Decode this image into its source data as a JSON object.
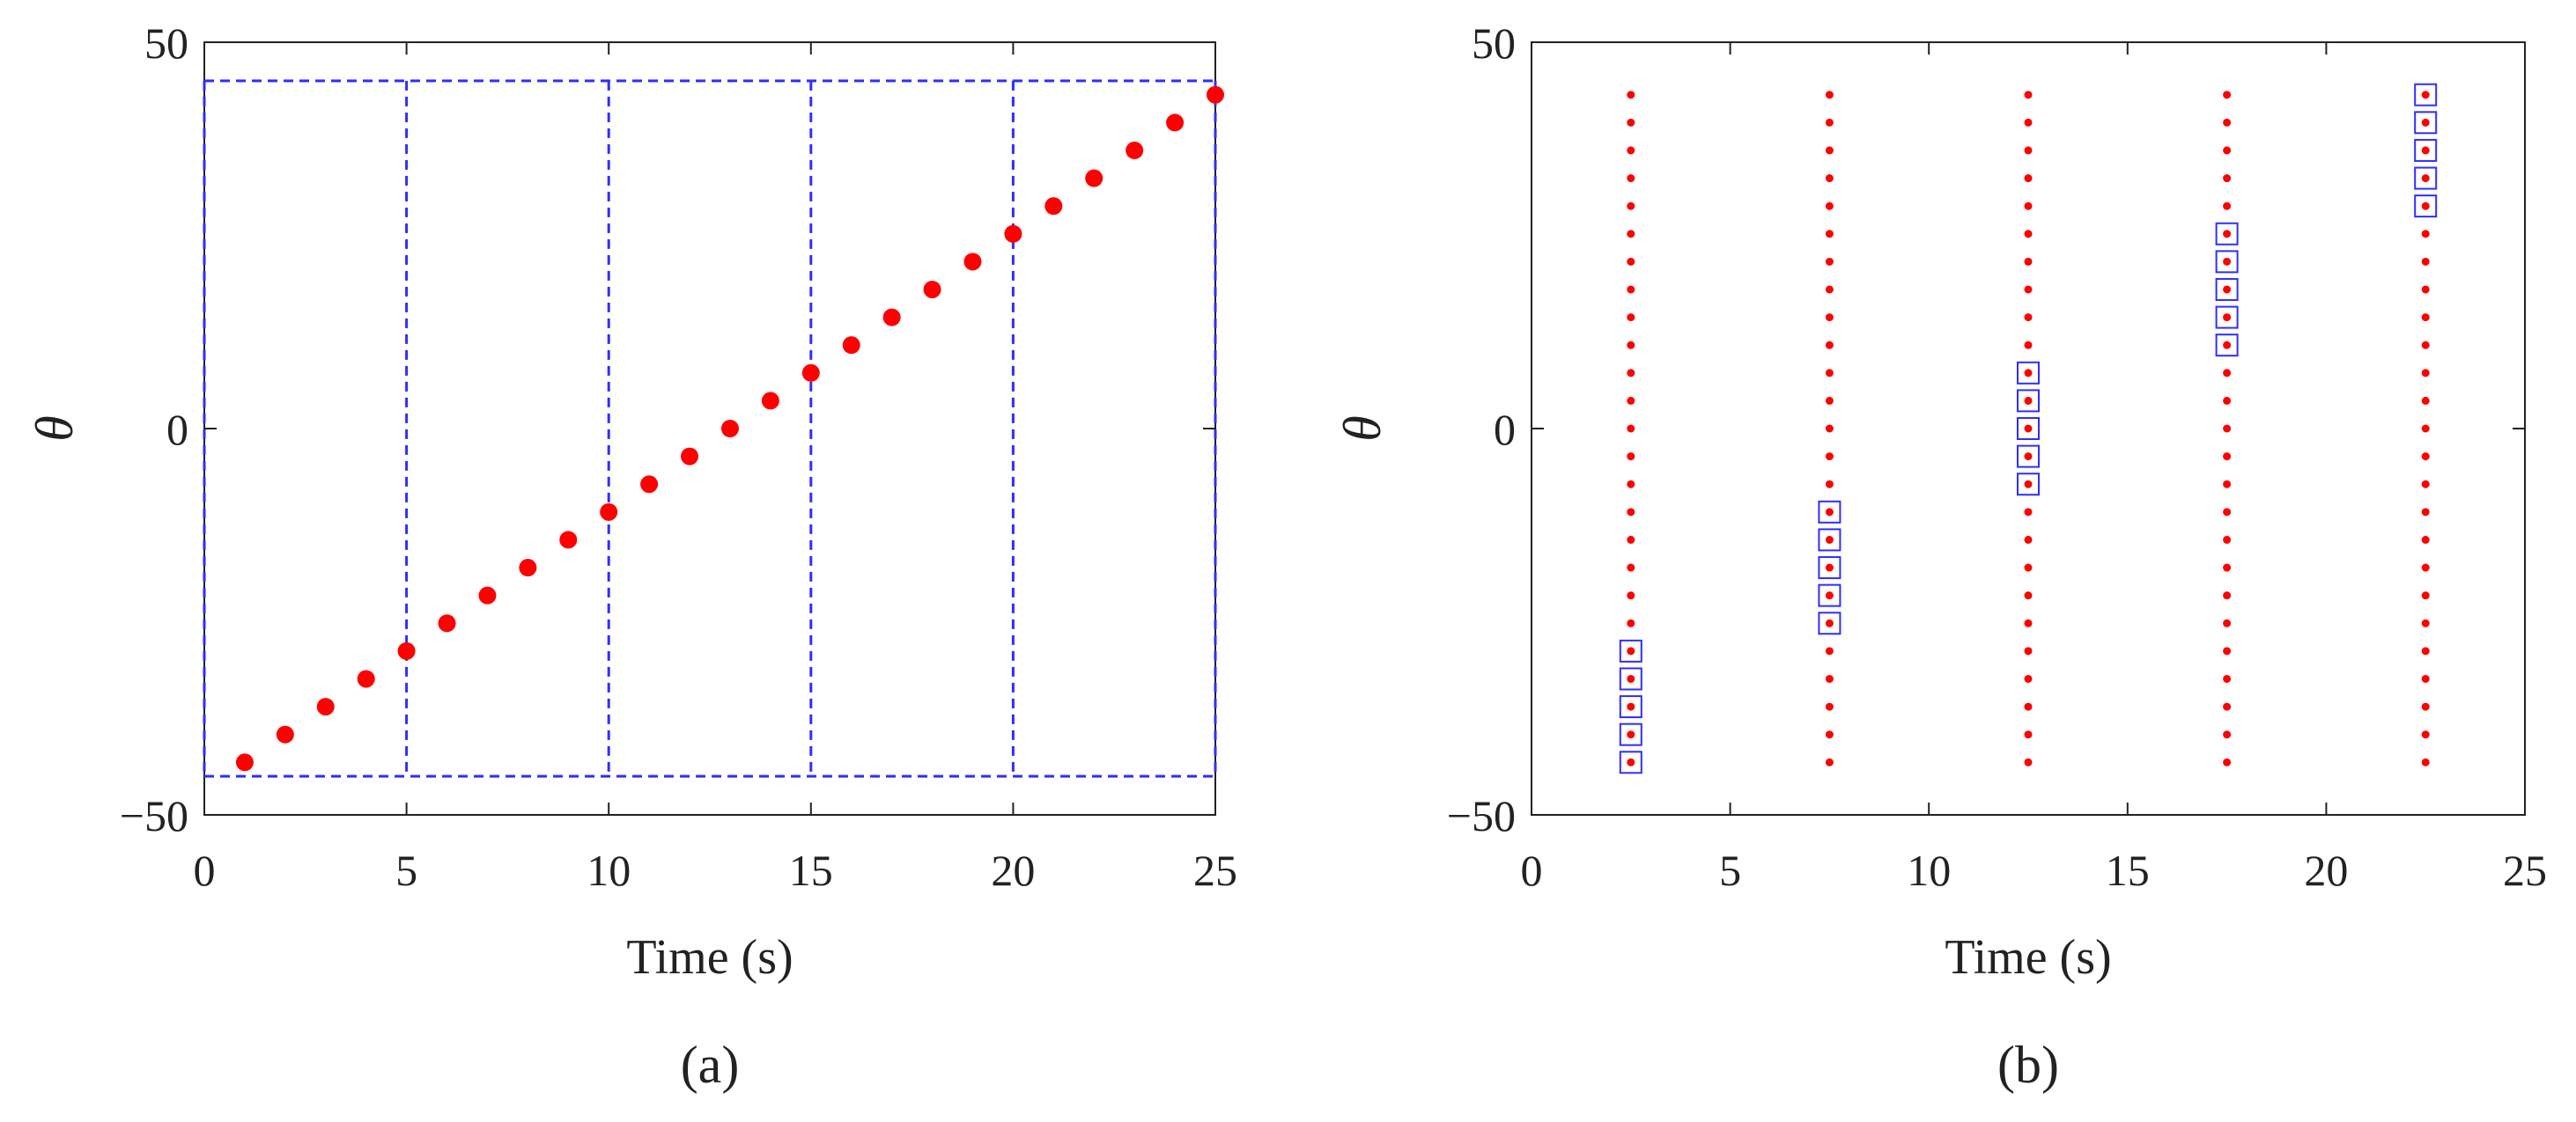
{
  "colors": {
    "marker": "#ff0000",
    "guide": "#2e2eff",
    "axis": "#222222"
  },
  "chart_data": [
    {
      "type": "scatter",
      "panel_label": "(a)",
      "xlabel": "Time (s)",
      "ylabel": "θ",
      "xlim": [
        0,
        25
      ],
      "ylim": [
        -50,
        50
      ],
      "xticks": [
        "0",
        "5",
        "10",
        "15",
        "20",
        "25"
      ],
      "yticks": [
        "50",
        "0",
        "−50"
      ],
      "grid": false,
      "series": [
        {
          "marker": "dot",
          "points": [
            [
              1,
              -43.2
            ],
            [
              2,
              -39.6
            ],
            [
              3,
              -36
            ],
            [
              4,
              -32.4
            ],
            [
              5,
              -28.8
            ],
            [
              6,
              -25.2
            ],
            [
              7,
              -21.6
            ],
            [
              8,
              -18
            ],
            [
              9,
              -14.4
            ],
            [
              10,
              -10.8
            ],
            [
              11,
              -7.2
            ],
            [
              12,
              -3.6
            ],
            [
              13,
              0
            ],
            [
              14,
              3.6
            ],
            [
              15,
              7.2
            ],
            [
              16,
              10.8
            ],
            [
              17,
              14.4
            ],
            [
              18,
              18
            ],
            [
              19,
              21.6
            ],
            [
              20,
              25.2
            ],
            [
              21,
              28.8
            ],
            [
              22,
              32.4
            ],
            [
              23,
              36
            ],
            [
              24,
              39.6
            ],
            [
              25,
              43.2
            ]
          ]
        }
      ],
      "guides": {
        "style": "dashed",
        "hlines": [
          45,
          -45
        ],
        "vlines": [
          0,
          5,
          10,
          15,
          20,
          25
        ]
      }
    },
    {
      "type": "scatter",
      "panel_label": "(b)",
      "xlabel": "Time (s)",
      "ylabel": "θ",
      "xlim": [
        0,
        25
      ],
      "ylim": [
        -50,
        50
      ],
      "xticks": [
        "0",
        "5",
        "10",
        "15",
        "20",
        "25"
      ],
      "yticks": [
        "50",
        "0",
        "−50"
      ],
      "grid": false,
      "columns": [
        2.5,
        7.5,
        12.5,
        17.5,
        22.5
      ],
      "column_y_range": [
        -43.2,
        43.2
      ],
      "column_points_per_column": 25,
      "highlighted_boxes": [
        {
          "x": 2.5,
          "y": [
            -43.2,
            -39.6,
            -36,
            -32.4,
            -28.8
          ]
        },
        {
          "x": 7.5,
          "y": [
            -25.2,
            -21.6,
            -18,
            -14.4,
            -10.8
          ]
        },
        {
          "x": 12.5,
          "y": [
            -7.2,
            -3.6,
            0,
            3.6,
            7.2
          ]
        },
        {
          "x": 17.5,
          "y": [
            10.8,
            14.4,
            18,
            21.6,
            25.2
          ]
        },
        {
          "x": 22.5,
          "y": [
            28.8,
            32.4,
            36,
            39.6,
            43.2
          ]
        }
      ]
    }
  ]
}
